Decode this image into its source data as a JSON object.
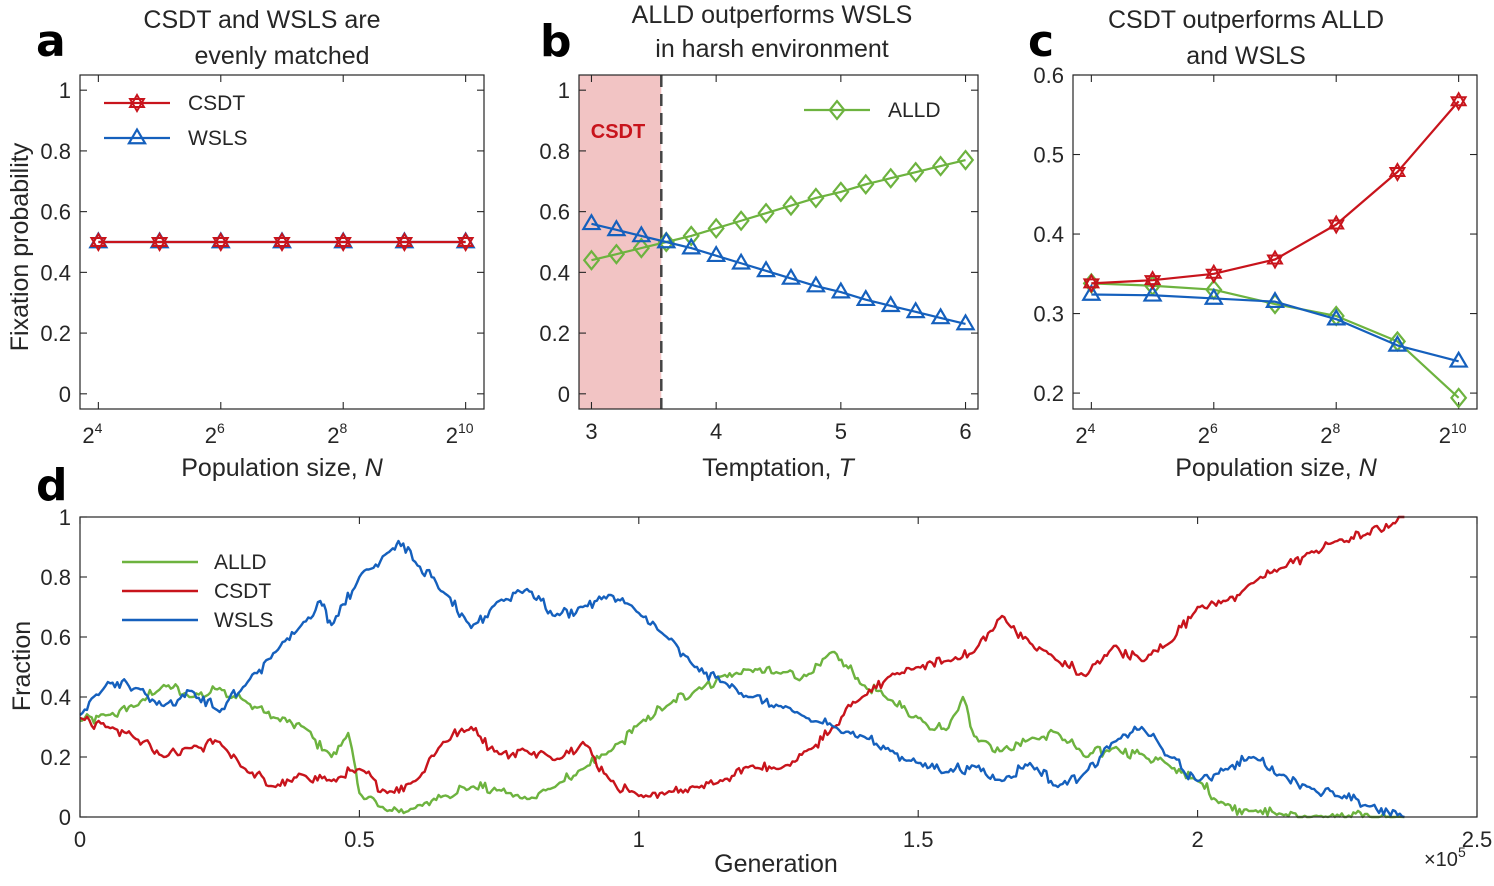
{
  "colors": {
    "CSDT": "#c8141c",
    "WSLS": "#1560bd",
    "ALLD": "#6db33f",
    "shade": "#f2c4c4",
    "axis": "#262626"
  },
  "chart_data": [
    {
      "panel": "a",
      "type": "line",
      "title": [
        "CSDT and WSLS are",
        "evenly matched"
      ],
      "xlabel": "Population size, ",
      "xlabel_italic": "N",
      "ylabel": "Fixation probability",
      "x_exponents": [
        4,
        5,
        6,
        7,
        8,
        9,
        10
      ],
      "x_tick_exponents": [
        4,
        6,
        8,
        10
      ],
      "x_tick_base": "2",
      "ylim": [
        0,
        1
      ],
      "yticks": [
        0,
        0.2,
        0.4,
        0.6,
        0.8,
        1
      ],
      "ytick_labels": [
        "0",
        "0.2",
        "0.4",
        "0.6",
        "0.8",
        "1"
      ],
      "legend": [
        "CSDT",
        "WSLS"
      ],
      "series": [
        {
          "name": "CSDT",
          "marker": "hexagram",
          "values": [
            0.5,
            0.5,
            0.5,
            0.5,
            0.5,
            0.5,
            0.5
          ]
        },
        {
          "name": "WSLS",
          "marker": "triangle",
          "values": [
            0.5,
            0.5,
            0.5,
            0.5,
            0.5,
            0.5,
            0.5
          ]
        }
      ]
    },
    {
      "panel": "b",
      "type": "line",
      "title": [
        "ALLD outperforms WSLS",
        "in harsh environment"
      ],
      "xlabel": "Temptation, ",
      "xlabel_italic": "T",
      "xlim": [
        2.9,
        6.1
      ],
      "xticks": [
        3,
        4,
        5,
        6
      ],
      "ylim": [
        0,
        1
      ],
      "yticks": [
        0,
        0.2,
        0.4,
        0.6,
        0.8,
        1
      ],
      "ytick_labels": [
        "0",
        "0.2",
        "0.4",
        "0.6",
        "0.8",
        "1"
      ],
      "region_label": "CSDT",
      "region_end": 3.56,
      "legend": [
        "ALLD"
      ],
      "x": [
        3.0,
        3.2,
        3.4,
        3.6,
        3.8,
        4.0,
        4.2,
        4.4,
        4.6,
        4.8,
        5.0,
        5.2,
        5.4,
        5.6,
        5.8,
        6.0
      ],
      "series": [
        {
          "name": "ALLD",
          "marker": "diamond",
          "values": [
            0.44,
            0.46,
            0.48,
            0.5,
            0.52,
            0.545,
            0.57,
            0.595,
            0.62,
            0.645,
            0.665,
            0.69,
            0.71,
            0.73,
            0.75,
            0.77
          ]
        },
        {
          "name": "WSLS",
          "marker": "triangle",
          "values": [
            0.56,
            0.54,
            0.52,
            0.5,
            0.48,
            0.455,
            0.43,
            0.405,
            0.38,
            0.355,
            0.335,
            0.31,
            0.29,
            0.27,
            0.25,
            0.23
          ]
        }
      ]
    },
    {
      "panel": "c",
      "type": "line",
      "title": [
        "CSDT outperforms ALLD",
        "and WSLS"
      ],
      "xlabel": "Population size, ",
      "xlabel_italic": "N",
      "x_exponents": [
        4,
        5,
        6,
        7,
        8,
        9,
        10
      ],
      "x_tick_exponents": [
        4,
        6,
        8,
        10
      ],
      "x_tick_base": "2",
      "ylim": [
        0.18,
        0.6
      ],
      "yticks": [
        0.2,
        0.3,
        0.4,
        0.5,
        0.6
      ],
      "ytick_labels": [
        "0.2",
        "0.3",
        "0.4",
        "0.5",
        "0.6"
      ],
      "series": [
        {
          "name": "CSDT",
          "marker": "hexagram",
          "values": [
            0.338,
            0.342,
            0.35,
            0.368,
            0.412,
            0.478,
            0.567
          ]
        },
        {
          "name": "ALLD",
          "marker": "diamond",
          "values": [
            0.338,
            0.335,
            0.33,
            0.312,
            0.297,
            0.265,
            0.194
          ]
        },
        {
          "name": "WSLS",
          "marker": "triangle",
          "values": [
            0.324,
            0.323,
            0.319,
            0.315,
            0.293,
            0.26,
            0.24
          ]
        }
      ]
    },
    {
      "panel": "d",
      "type": "line",
      "xlabel": "Generation",
      "ylabel": "Fraction",
      "xlim": [
        0,
        2.5
      ],
      "xticks": [
        0,
        0.5,
        1,
        1.5,
        2,
        2.5
      ],
      "xtick_labels": [
        "0",
        "0.5",
        "1",
        "1.5",
        "2",
        "2.5"
      ],
      "x_multiplier": "×10",
      "x_multiplier_exp": "5",
      "ylim": [
        0,
        1
      ],
      "yticks": [
        0,
        0.2,
        0.4,
        0.6,
        0.8,
        1
      ],
      "ytick_labels": [
        "0",
        "0.2",
        "0.4",
        "0.6",
        "0.8",
        "1"
      ],
      "legend": [
        "ALLD",
        "CSDT",
        "WSLS"
      ],
      "series": [
        {
          "name": "ALLD",
          "x": [
            0,
            0.05,
            0.1,
            0.15,
            0.2,
            0.25,
            0.3,
            0.35,
            0.4,
            0.45,
            0.48,
            0.5,
            0.55,
            0.6,
            0.65,
            0.7,
            0.75,
            0.8,
            0.85,
            0.9,
            0.95,
            1.0,
            1.05,
            1.1,
            1.15,
            1.2,
            1.25,
            1.3,
            1.35,
            1.4,
            1.45,
            1.5,
            1.55,
            1.58,
            1.6,
            1.65,
            1.7,
            1.75,
            1.8,
            1.85,
            1.9,
            1.95,
            2.0,
            2.05,
            2.1,
            2.15,
            2.2,
            2.37
          ],
          "values": [
            0.32,
            0.34,
            0.37,
            0.44,
            0.4,
            0.43,
            0.38,
            0.33,
            0.3,
            0.2,
            0.28,
            0.08,
            0.02,
            0.03,
            0.07,
            0.1,
            0.09,
            0.06,
            0.1,
            0.16,
            0.22,
            0.31,
            0.37,
            0.42,
            0.47,
            0.49,
            0.48,
            0.47,
            0.55,
            0.44,
            0.39,
            0.33,
            0.29,
            0.4,
            0.27,
            0.22,
            0.26,
            0.28,
            0.2,
            0.23,
            0.21,
            0.17,
            0.12,
            0.04,
            0.02,
            0.01,
            0.0,
            0.0
          ]
        },
        {
          "name": "CSDT",
          "x": [
            0,
            0.05,
            0.1,
            0.15,
            0.2,
            0.25,
            0.3,
            0.35,
            0.4,
            0.45,
            0.5,
            0.55,
            0.6,
            0.65,
            0.7,
            0.75,
            0.8,
            0.85,
            0.9,
            0.95,
            1.0,
            1.05,
            1.1,
            1.15,
            1.2,
            1.25,
            1.3,
            1.35,
            1.4,
            1.45,
            1.5,
            1.55,
            1.6,
            1.65,
            1.7,
            1.75,
            1.8,
            1.85,
            1.9,
            1.95,
            2.0,
            2.05,
            2.1,
            2.15,
            2.2,
            2.25,
            2.3,
            2.35,
            2.37
          ],
          "values": [
            0.33,
            0.3,
            0.26,
            0.2,
            0.23,
            0.25,
            0.15,
            0.1,
            0.14,
            0.12,
            0.16,
            0.08,
            0.12,
            0.25,
            0.3,
            0.21,
            0.22,
            0.19,
            0.25,
            0.12,
            0.07,
            0.08,
            0.1,
            0.12,
            0.17,
            0.16,
            0.22,
            0.3,
            0.4,
            0.47,
            0.5,
            0.52,
            0.55,
            0.67,
            0.58,
            0.52,
            0.47,
            0.57,
            0.52,
            0.58,
            0.7,
            0.72,
            0.78,
            0.83,
            0.88,
            0.92,
            0.94,
            0.98,
            1.0
          ]
        },
        {
          "name": "WSLS",
          "x": [
            0,
            0.05,
            0.1,
            0.15,
            0.2,
            0.25,
            0.3,
            0.35,
            0.4,
            0.43,
            0.45,
            0.5,
            0.55,
            0.57,
            0.6,
            0.65,
            0.7,
            0.75,
            0.8,
            0.85,
            0.9,
            0.95,
            1.0,
            1.05,
            1.1,
            1.15,
            1.2,
            1.25,
            1.3,
            1.35,
            1.4,
            1.45,
            1.5,
            1.55,
            1.6,
            1.65,
            1.7,
            1.75,
            1.8,
            1.85,
            1.9,
            1.95,
            2.0,
            2.05,
            2.1,
            2.15,
            2.2,
            2.25,
            2.3,
            2.37
          ],
          "values": [
            0.34,
            0.45,
            0.43,
            0.37,
            0.42,
            0.35,
            0.45,
            0.55,
            0.65,
            0.72,
            0.64,
            0.8,
            0.88,
            0.92,
            0.85,
            0.75,
            0.63,
            0.72,
            0.76,
            0.67,
            0.7,
            0.74,
            0.68,
            0.6,
            0.5,
            0.45,
            0.4,
            0.37,
            0.33,
            0.3,
            0.27,
            0.22,
            0.18,
            0.15,
            0.17,
            0.12,
            0.18,
            0.1,
            0.15,
            0.25,
            0.3,
            0.2,
            0.12,
            0.16,
            0.2,
            0.14,
            0.1,
            0.07,
            0.04,
            0.0
          ]
        }
      ]
    }
  ]
}
